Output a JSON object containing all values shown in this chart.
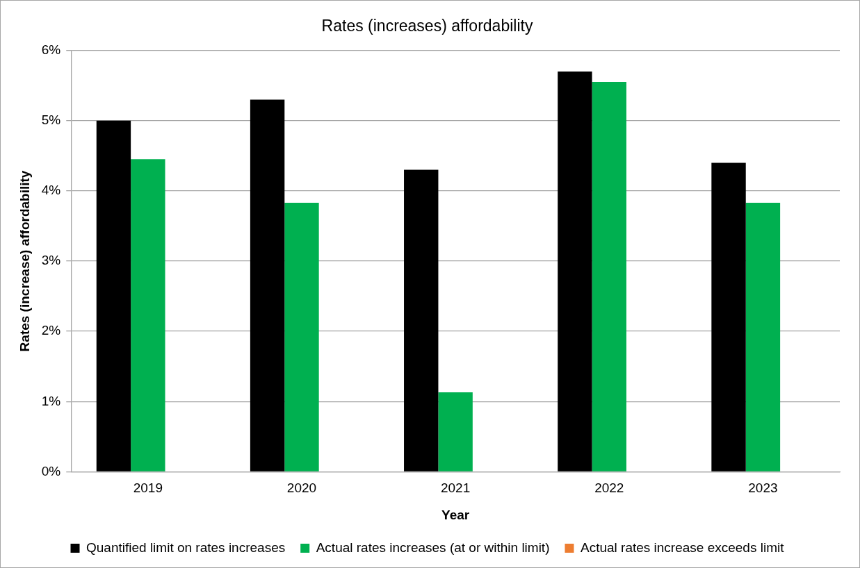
{
  "chart_data": {
    "type": "bar",
    "title": "Rates (increases) affordability",
    "xlabel": "Year",
    "ylabel": "Rates (increase) affordability",
    "categories": [
      "2019",
      "2020",
      "2021",
      "2022",
      "2023"
    ],
    "series": [
      {
        "name": "Quantified limit on rates increases",
        "color": "#000000",
        "values": [
          5.0,
          5.3,
          4.3,
          5.7,
          4.4
        ]
      },
      {
        "name": "Actual rates increases (at or within limit)",
        "color": "#00b050",
        "values": [
          4.45,
          3.83,
          1.13,
          5.55,
          3.83
        ]
      },
      {
        "name": "Actual rates increase exceeds limit",
        "color": "#ed7d31",
        "values": [
          null,
          null,
          null,
          null,
          null
        ]
      }
    ],
    "ylim": [
      0,
      6
    ],
    "yticks": [
      {
        "value": 0,
        "label": "0%"
      },
      {
        "value": 1,
        "label": "1%"
      },
      {
        "value": 2,
        "label": "2%"
      },
      {
        "value": 3,
        "label": "3%"
      },
      {
        "value": 4,
        "label": "4%"
      },
      {
        "value": 5,
        "label": "5%"
      },
      {
        "value": 6,
        "label": "6%"
      }
    ],
    "grid": "y",
    "legend": "bottom"
  }
}
